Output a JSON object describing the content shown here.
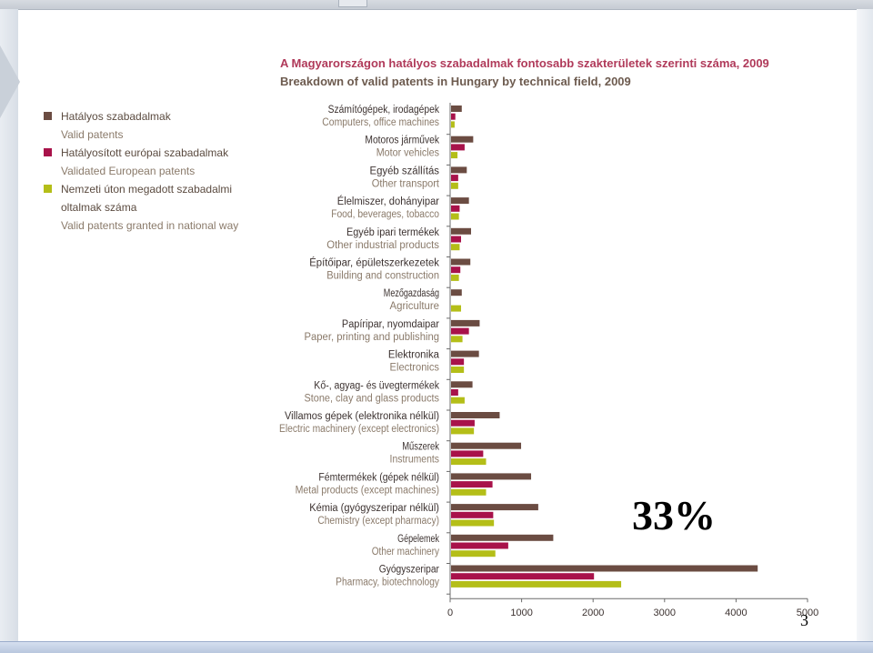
{
  "title_hu": "A Magyarországon hatályos szabadalmak fontosabb szakterületek szerinti száma, 2009",
  "title_en": "Breakdown of valid patents in Hungary by technical field, 2009",
  "legend": [
    {
      "hu": "Hatályos szabadalmak",
      "en": "Valid patents",
      "color": "#6b4c42"
    },
    {
      "hu": "Hatályosított európai szabadalmak",
      "en": "Validated European patents",
      "color": "#a8124a"
    },
    {
      "hu": "Nemzeti úton megadott szabadalmi oltalmak száma",
      "en": "Valid patents granted in national way",
      "color": "#b4be18"
    }
  ],
  "overlay_text": "33%",
  "page_number": "3",
  "chart_data": {
    "type": "bar",
    "orientation": "horizontal",
    "title": "A Magyarországon hatályos szabadalmak fontosabb szakterületek szerinti száma, 2009",
    "subtitle": "Breakdown of valid patents in Hungary by technical field, 2009",
    "xlim": [
      0,
      5000
    ],
    "xticks": [
      0,
      1000,
      2000,
      3000,
      4000,
      5000
    ],
    "grid": false,
    "legend_position": "left",
    "categories": [
      {
        "hu": "Számítógépek, irodagépek",
        "en": "Computers, office machines"
      },
      {
        "hu": "Motoros járművek",
        "en": "Motor vehicles"
      },
      {
        "hu": "Egyéb szállítás",
        "en": "Other transport"
      },
      {
        "hu": "Élelmiszer, dohányipar",
        "en": "Food, beverages, tobacco"
      },
      {
        "hu": "Egyéb ipari termékek",
        "en": "Other industrial products"
      },
      {
        "hu": "Építőipar, épületszerkezetek",
        "en": "Building and construction"
      },
      {
        "hu": "Mezőgazdaság",
        "en": "Agriculture"
      },
      {
        "hu": "Papíripar, nyomdaipar",
        "en": "Paper, printing and publishing"
      },
      {
        "hu": "Elektronika",
        "en": "Electronics"
      },
      {
        "hu": "Kő-, agyag- és üvegtermékek",
        "en": "Stone, clay and glass products"
      },
      {
        "hu": "Villamos gépek (elektronika nélkül)",
        "en": "Electric machinery (except electronics)"
      },
      {
        "hu": "Műszerek",
        "en": "Instruments"
      },
      {
        "hu": "Fémtermékek (gépek nélkül)",
        "en": "Metal products (except machines)"
      },
      {
        "hu": "Kémia (gyógyszeripar nélkül)",
        "en": "Chemistry (except pharmacy)"
      },
      {
        "hu": "Gépelemek",
        "en": "Other machinery"
      },
      {
        "hu": "Gyógyszeripar",
        "en": "Pharmacy, biotechnology"
      }
    ],
    "series": [
      {
        "name": "Hatályos szabadalmak / Valid patents",
        "color": "#6b4c42",
        "values": [
          150,
          310,
          220,
          250,
          280,
          270,
          150,
          400,
          390,
          300,
          680,
          980,
          1120,
          1220,
          1430,
          4290
        ]
      },
      {
        "name": "Hatályosított európai szabadalmak / Validated European patents",
        "color": "#a8124a",
        "values": [
          60,
          190,
          100,
          120,
          140,
          130,
          0,
          250,
          180,
          100,
          330,
          450,
          580,
          590,
          800,
          2000
        ]
      },
      {
        "name": "Nemzeti úton megadott szabadalmi oltalmak száma / Valid patents granted in national way",
        "color": "#b4be18",
        "values": [
          50,
          90,
          100,
          110,
          120,
          110,
          140,
          160,
          180,
          190,
          320,
          490,
          490,
          600,
          620,
          2380
        ]
      }
    ]
  }
}
